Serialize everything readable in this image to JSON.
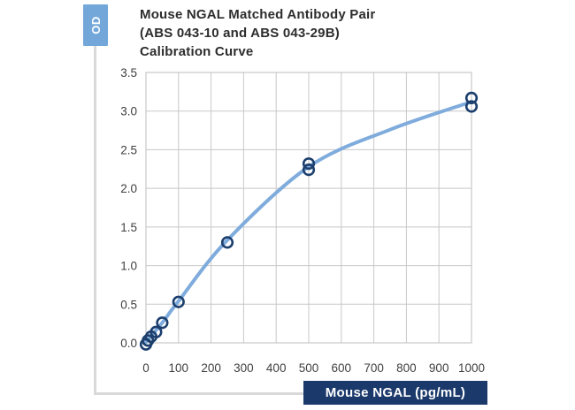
{
  "header": {
    "title_lines": [
      "Mouse NGAL Matched Antibody Pair",
      "(ABS 043-10 and ABS 043-29B)",
      "Calibration Curve"
    ]
  },
  "axes": {
    "y_box_label": "OD",
    "x_box_label": "Mouse NGAL (pg/mL)"
  },
  "chart_data": {
    "type": "line-scatter",
    "title": "Mouse NGAL Matched Antibody Pair (ABS 043-10 and ABS 043-29B) Calibration Curve",
    "xlabel": "Mouse NGAL (pg/mL)",
    "ylabel": "OD",
    "xlim": [
      0,
      1000
    ],
    "ylim": [
      0,
      3.5
    ],
    "x_tick_labels": [
      "0",
      "100",
      "200",
      "300",
      "400",
      "500",
      "600",
      "700",
      "800",
      "900",
      "1000"
    ],
    "y_tick_labels": [
      "0.0",
      "0.5",
      "1.0",
      "1.5",
      "2.0",
      "2.5",
      "3.0",
      "3.5"
    ],
    "grid": true,
    "legend": "none",
    "series": [
      {
        "name": "calibration-points",
        "type": "scatter",
        "marker": "open-circle",
        "points": [
          [
            0,
            -0.02
          ],
          [
            6,
            0.03
          ],
          [
            16,
            0.08
          ],
          [
            31,
            0.14
          ],
          [
            50,
            0.26
          ],
          [
            100,
            0.53
          ],
          [
            250,
            1.3
          ],
          [
            500,
            2.24
          ],
          [
            500,
            2.32
          ],
          [
            1000,
            3.06
          ],
          [
            1000,
            3.17
          ]
        ]
      },
      {
        "name": "fitted-curve",
        "type": "line",
        "points": [
          [
            0,
            0.01
          ],
          [
            50,
            0.26
          ],
          [
            100,
            0.54
          ],
          [
            250,
            1.33
          ],
          [
            500,
            2.28
          ],
          [
            750,
            2.76
          ],
          [
            1000,
            3.12
          ]
        ]
      }
    ],
    "colors": {
      "line": "#7facdc",
      "marker_stroke": "#1c3f6e",
      "grid": "#c8c8c8",
      "plot_border": "#bdbdbd",
      "axis_box_blue": "#73a7da",
      "axis_box_navy": "#1b3a6b"
    }
  }
}
